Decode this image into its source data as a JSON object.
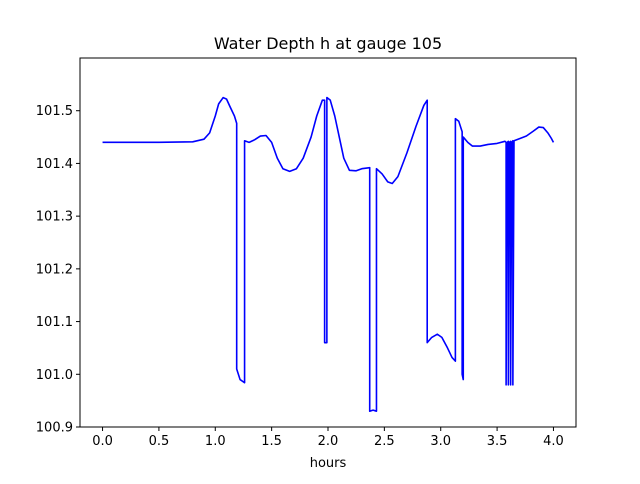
{
  "chart_data": {
    "type": "line",
    "title": "Water Depth h at gauge 105",
    "xlabel": "hours",
    "ylabel": "",
    "xlim": [
      -0.2,
      4.2
    ],
    "ylim": [
      100.9,
      101.6
    ],
    "xticks": [
      0.0,
      0.5,
      1.0,
      1.5,
      2.0,
      2.5,
      3.0,
      3.5,
      4.0
    ],
    "xtick_labels": [
      "0.0",
      "0.5",
      "1.0",
      "1.5",
      "2.0",
      "2.5",
      "3.0",
      "3.5",
      "4.0"
    ],
    "yticks": [
      100.9,
      101.0,
      101.1,
      101.2,
      101.3,
      101.4,
      101.5
    ],
    "ytick_labels": [
      "100.9",
      "101.0",
      "101.1",
      "101.2",
      "101.3",
      "101.4",
      "101.5"
    ],
    "grid": false,
    "series": [
      {
        "color": "#0000ff",
        "points": [
          [
            0.0,
            101.44
          ],
          [
            0.5,
            101.44
          ],
          [
            0.8,
            101.441
          ],
          [
            0.9,
            101.446
          ],
          [
            0.95,
            101.458
          ],
          [
            1.0,
            101.49
          ],
          [
            1.03,
            101.513
          ],
          [
            1.07,
            101.525
          ],
          [
            1.1,
            101.522
          ],
          [
            1.13,
            101.508
          ],
          [
            1.17,
            101.49
          ],
          [
            1.19,
            101.476
          ],
          [
            1.19,
            101.01
          ],
          [
            1.22,
            100.99
          ],
          [
            1.26,
            100.984
          ],
          [
            1.26,
            101.443
          ],
          [
            1.3,
            101.44
          ],
          [
            1.35,
            101.445
          ],
          [
            1.4,
            101.452
          ],
          [
            1.45,
            101.453
          ],
          [
            1.5,
            101.44
          ],
          [
            1.55,
            101.41
          ],
          [
            1.6,
            101.39
          ],
          [
            1.66,
            101.385
          ],
          [
            1.72,
            101.39
          ],
          [
            1.78,
            101.41
          ],
          [
            1.85,
            101.45
          ],
          [
            1.9,
            101.49
          ],
          [
            1.95,
            101.52
          ],
          [
            1.97,
            101.52
          ],
          [
            1.97,
            101.06
          ],
          [
            1.99,
            101.06
          ],
          [
            1.99,
            101.525
          ],
          [
            2.02,
            101.52
          ],
          [
            2.06,
            101.49
          ],
          [
            2.1,
            101.45
          ],
          [
            2.14,
            101.41
          ],
          [
            2.19,
            101.387
          ],
          [
            2.25,
            101.386
          ],
          [
            2.3,
            101.39
          ],
          [
            2.37,
            101.392
          ],
          [
            2.37,
            100.93
          ],
          [
            2.4,
            100.932
          ],
          [
            2.43,
            100.93
          ],
          [
            2.43,
            101.39
          ],
          [
            2.48,
            101.38
          ],
          [
            2.53,
            101.365
          ],
          [
            2.57,
            101.362
          ],
          [
            2.62,
            101.375
          ],
          [
            2.7,
            101.42
          ],
          [
            2.78,
            101.47
          ],
          [
            2.85,
            101.51
          ],
          [
            2.88,
            101.52
          ],
          [
            2.88,
            101.06
          ],
          [
            2.92,
            101.07
          ],
          [
            2.97,
            101.076
          ],
          [
            3.01,
            101.07
          ],
          [
            3.06,
            101.05
          ],
          [
            3.1,
            101.032
          ],
          [
            3.13,
            101.025
          ],
          [
            3.13,
            101.485
          ],
          [
            3.16,
            101.48
          ],
          [
            3.19,
            101.46
          ],
          [
            3.19,
            101.0
          ],
          [
            3.2,
            100.99
          ],
          [
            3.2,
            101.45
          ],
          [
            3.24,
            101.44
          ],
          [
            3.28,
            101.433
          ],
          [
            3.35,
            101.433
          ],
          [
            3.42,
            101.436
          ],
          [
            3.5,
            101.438
          ],
          [
            3.57,
            101.442
          ],
          [
            3.58,
            101.44
          ],
          [
            3.58,
            100.98
          ],
          [
            3.59,
            101.44
          ],
          [
            3.6,
            101.442
          ],
          [
            3.6,
            100.98
          ],
          [
            3.61,
            101.44
          ],
          [
            3.62,
            101.442
          ],
          [
            3.62,
            100.98
          ],
          [
            3.63,
            101.44
          ],
          [
            3.64,
            101.443
          ],
          [
            3.64,
            100.98
          ],
          [
            3.65,
            101.443
          ],
          [
            3.7,
            101.447
          ],
          [
            3.76,
            101.452
          ],
          [
            3.82,
            101.461
          ],
          [
            3.87,
            101.469
          ],
          [
            3.91,
            101.468
          ],
          [
            3.95,
            101.458
          ],
          [
            3.98,
            101.448
          ],
          [
            4.0,
            101.44
          ]
        ]
      }
    ]
  }
}
